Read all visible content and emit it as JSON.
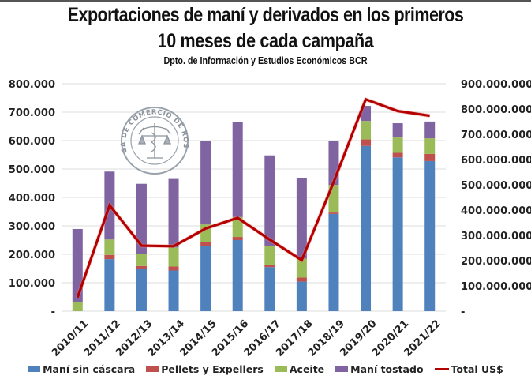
{
  "header": {
    "title_line1": "Exportaciones de maní y derivados en los primeros",
    "title_line2": "10 meses de cada campaña",
    "subtitle": "Dpto. de Información y Estudios Económicos BCR"
  },
  "watermark": {
    "text": "BOLSA DE COMERCIO DE ROSARIO"
  },
  "colors": {
    "mani_sin_cascara": "#4F81BD",
    "pellets_expellers": "#C0504D",
    "aceite": "#9BBB59",
    "mani_tostado": "#8064A2",
    "total_usd": "#B50000",
    "grid": "#E4E4E4"
  },
  "chart_data": {
    "type": "bar",
    "stacked": true,
    "title": "Exportaciones de maní y derivados en los primeros 10 meses de cada campaña",
    "subtitle": "Dpto. de Información y Estudios Económicos BCR",
    "xlabel": "",
    "ylabel": "",
    "ylabel_right": "",
    "categories": [
      "2010/11",
      "2011/12",
      "2012/13",
      "2013/14",
      "2014/15",
      "2015/16",
      "2016/17",
      "2017/18",
      "2018/19",
      "2019/20",
      "2020/21",
      "2021/22"
    ],
    "series": [
      {
        "name": "Maní sin cáscara",
        "type": "bar",
        "axis": "left",
        "color": "#4F81BD",
        "values": [
          0,
          183000,
          150000,
          143000,
          230000,
          250000,
          155000,
          104000,
          342000,
          581000,
          541000,
          528000
        ]
      },
      {
        "name": "Pellets y Expellers",
        "type": "bar",
        "axis": "left",
        "color": "#C0504D",
        "values": [
          0,
          15000,
          9000,
          14000,
          13000,
          11000,
          9000,
          14000,
          5000,
          23000,
          16000,
          25000
        ]
      },
      {
        "name": "Aceite",
        "type": "bar",
        "axis": "left",
        "color": "#9BBB59",
        "values": [
          33000,
          54000,
          42000,
          67000,
          62000,
          70000,
          66000,
          66000,
          97000,
          65000,
          54000,
          55000
        ]
      },
      {
        "name": "Maní tostado",
        "type": "bar",
        "axis": "left",
        "color": "#8064A2",
        "values": [
          256000,
          239000,
          247000,
          241000,
          294000,
          335000,
          318000,
          284000,
          155000,
          53000,
          50000,
          59000
        ]
      },
      {
        "name": "Total US$",
        "type": "line",
        "axis": "right",
        "color": "#B50000",
        "values": [
          54000000,
          419000000,
          259000000,
          257000000,
          327000000,
          369000000,
          283000000,
          202000000,
          512000000,
          838000000,
          792000000,
          773000000
        ]
      }
    ],
    "ylim": [
      0,
      800000
    ],
    "ylim_right": [
      0,
      900000000
    ],
    "yticks": [
      "-",
      "100.000",
      "200.000",
      "300.000",
      "400.000",
      "500.000",
      "600.000",
      "700.000",
      "800.000"
    ],
    "yticks_right": [
      "-",
      "100.000.000",
      "200.000.000",
      "300.000.000",
      "400.000.000",
      "500.000.000",
      "600.000.000",
      "700.000.000",
      "800.000.000",
      "900.000.000"
    ],
    "grid": true,
    "legend": "bottom"
  }
}
